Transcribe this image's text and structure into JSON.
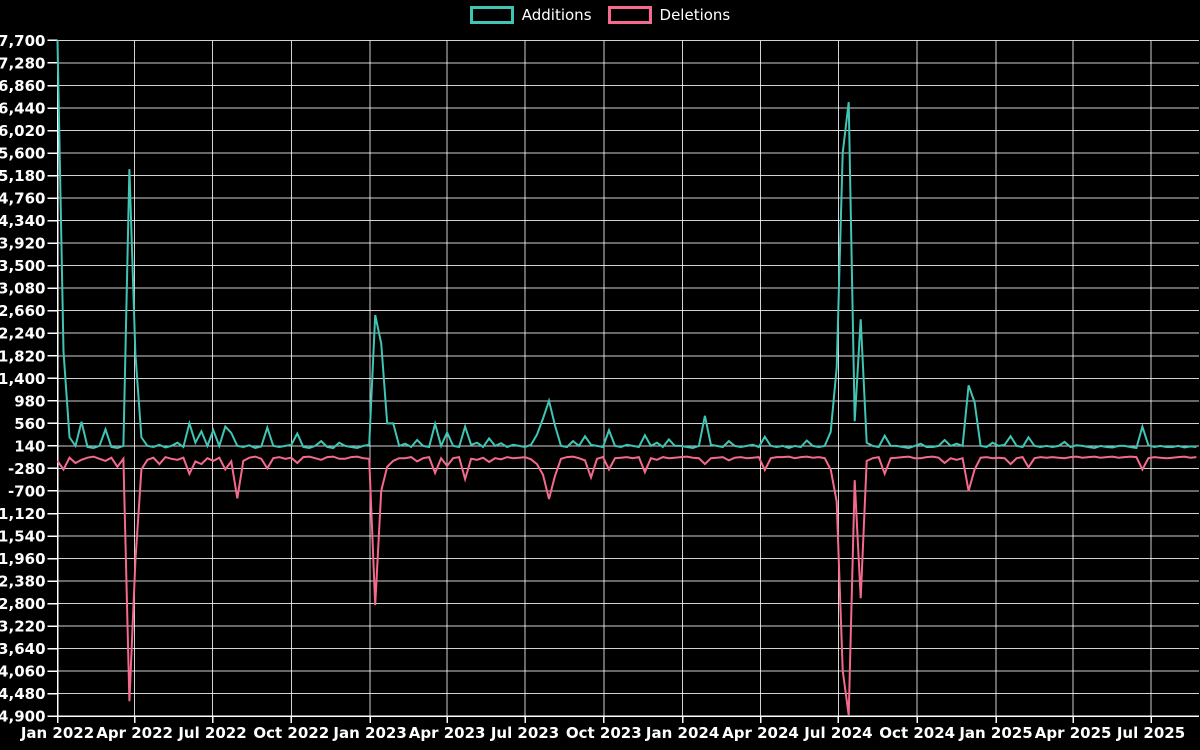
{
  "background_color": "#000000",
  "chart_data": {
    "type": "line",
    "title": "",
    "xlabel": "",
    "ylabel": "",
    "grid": true,
    "legend_position": "top-center",
    "x_start_date": "2022-01-01",
    "x_interval": "weekly",
    "x_tick_labels": [
      "Jan 2022",
      "Apr 2022",
      "Jul 2022",
      "Oct 2022",
      "Jan 2023",
      "Apr 2023",
      "Jul 2023",
      "Oct 2023",
      "Jan 2024",
      "Apr 2024",
      "Jul 2024",
      "Oct 2024",
      "Jan 2025",
      "Apr 2025",
      "Jul 2025"
    ],
    "y_axis": {
      "min": -4900,
      "max": 7700,
      "step": 420
    },
    "y_tick_labels": [
      "7,700",
      "7,280",
      "6,860",
      "6,440",
      "6,020",
      "5,600",
      "5,180",
      "4,760",
      "4,340",
      "3,920",
      "3,500",
      "3,080",
      "2,660",
      "2,240",
      "1,820",
      "1,400",
      "980",
      "560",
      "140",
      "-280",
      "-700",
      "-1,120",
      "-1,540",
      "-1,960",
      "-2,380",
      "-2,800",
      "-3,220",
      "-3,640",
      "-4,060",
      "-4,480",
      "-4,900"
    ],
    "series": [
      {
        "name": "Additions",
        "color": "#40c4b4",
        "values": [
          7700,
          1900,
          300,
          140,
          590,
          120,
          100,
          140,
          450,
          120,
          100,
          140,
          5300,
          1850,
          300,
          140,
          120,
          160,
          110,
          140,
          200,
          120,
          560,
          200,
          410,
          140,
          430,
          140,
          500,
          380,
          140,
          120,
          150,
          100,
          130,
          480,
          140,
          120,
          140,
          160,
          370,
          120,
          100,
          140,
          230,
          120,
          100,
          200,
          140,
          120,
          100,
          140,
          160,
          2580,
          2050,
          560,
          560,
          140,
          180,
          120,
          250,
          140,
          120,
          550,
          140,
          390,
          140,
          120,
          500,
          160,
          200,
          120,
          280,
          140,
          190,
          120,
          160,
          140,
          120,
          160,
          350,
          650,
          980,
          520,
          140,
          120,
          230,
          140,
          320,
          160,
          140,
          120,
          430,
          140,
          120,
          160,
          140,
          120,
          340,
          140,
          200,
          120,
          260,
          140,
          140,
          120,
          100,
          140,
          700,
          160,
          140,
          120,
          230,
          140,
          120,
          140,
          160,
          120,
          310,
          140,
          120,
          140,
          100,
          140,
          120,
          240,
          140,
          120,
          140,
          400,
          1600,
          5600,
          6550,
          600,
          2500,
          200,
          140,
          120,
          330,
          140,
          140,
          120,
          100,
          140,
          180,
          120,
          120,
          140,
          250,
          140,
          180,
          140,
          1270,
          950,
          140,
          120,
          200,
          140,
          160,
          320,
          140,
          120,
          300,
          140,
          120,
          140,
          120,
          140,
          215,
          120,
          150,
          140,
          120,
          100,
          140,
          120,
          110,
          140,
          140,
          120,
          100,
          500,
          150,
          120,
          140,
          120,
          120,
          140,
          110,
          130,
          120
        ]
      },
      {
        "name": "Deletions",
        "color": "#f5698c",
        "values": [
          -140,
          -300,
          -80,
          -180,
          -120,
          -80,
          -60,
          -100,
          -140,
          -80,
          -250,
          -100,
          -4620,
          -2000,
          -300,
          -120,
          -80,
          -200,
          -70,
          -100,
          -120,
          -80,
          -380,
          -150,
          -200,
          -90,
          -140,
          -80,
          -300,
          -150,
          -840,
          -140,
          -80,
          -60,
          -100,
          -280,
          -90,
          -70,
          -100,
          -80,
          -180,
          -70,
          -60,
          -90,
          -120,
          -70,
          -60,
          -100,
          -100,
          -70,
          -60,
          -90,
          -100,
          -2830,
          -700,
          -250,
          -140,
          -90,
          -90,
          -70,
          -150,
          -90,
          -70,
          -365,
          -90,
          -235,
          -90,
          -70,
          -480,
          -100,
          -120,
          -80,
          -160,
          -90,
          -110,
          -70,
          -90,
          -80,
          -70,
          -110,
          -200,
          -400,
          -850,
          -420,
          -100,
          -70,
          -60,
          -90,
          -130,
          -450,
          -100,
          -70,
          -300,
          -90,
          -80,
          -70,
          -90,
          -70,
          -350,
          -90,
          -120,
          -70,
          -90,
          -80,
          -70,
          -60,
          -80,
          -90,
          -200,
          -90,
          -80,
          -70,
          -130,
          -80,
          -70,
          -90,
          -80,
          -70,
          -310,
          -90,
          -70,
          -70,
          -60,
          -90,
          -70,
          -60,
          -80,
          -70,
          -90,
          -300,
          -900,
          -4050,
          -4880,
          -500,
          -2700,
          -140,
          -90,
          -70,
          -380,
          -90,
          -80,
          -70,
          -60,
          -90,
          -90,
          -70,
          -60,
          -80,
          -180,
          -90,
          -120,
          -90,
          -700,
          -300,
          -80,
          -70,
          -90,
          -80,
          -90,
          -200,
          -90,
          -70,
          -260,
          -90,
          -70,
          -80,
          -70,
          -80,
          -90,
          -70,
          -60,
          -80,
          -70,
          -60,
          -80,
          -70,
          -60,
          -80,
          -70,
          -60,
          -70,
          -300,
          -90,
          -70,
          -80,
          -90,
          -80,
          -70,
          -60,
          -80,
          -70
        ]
      }
    ]
  }
}
